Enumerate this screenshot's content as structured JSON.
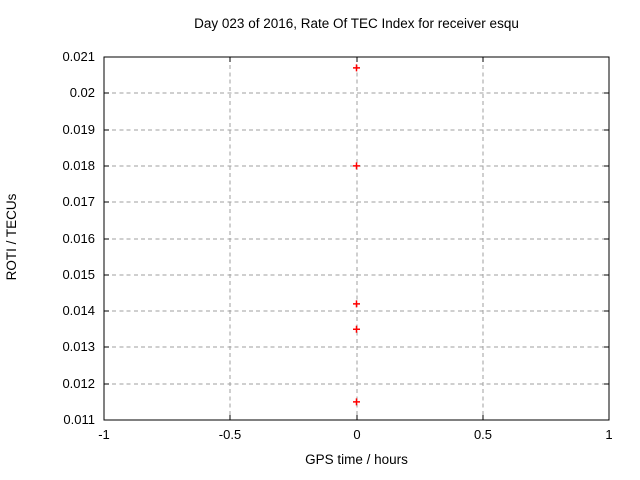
{
  "window": {
    "background": "#ffffff"
  },
  "chart_data": {
    "type": "scatter",
    "title": "Day 023 of 2016, Rate Of TEC Index for receiver esqu",
    "xlabel": "GPS time / hours",
    "ylabel": "ROTI / TECUs",
    "xlim": [
      -1,
      1
    ],
    "ylim": [
      0.011,
      0.021
    ],
    "grid": true,
    "legend_position": "none",
    "xticks": [
      {
        "value": -1,
        "label": "-1"
      },
      {
        "value": -0.5,
        "label": "-0.5"
      },
      {
        "value": 0,
        "label": "0"
      },
      {
        "value": 0.5,
        "label": "0.5"
      },
      {
        "value": 1,
        "label": "1"
      }
    ],
    "yticks": [
      {
        "value": 0.011,
        "label": "0.011"
      },
      {
        "value": 0.012,
        "label": "0.012"
      },
      {
        "value": 0.013,
        "label": "0.013"
      },
      {
        "value": 0.014,
        "label": "0.014"
      },
      {
        "value": 0.015,
        "label": "0.015"
      },
      {
        "value": 0.016,
        "label": "0.016"
      },
      {
        "value": 0.017,
        "label": "0.017"
      },
      {
        "value": 0.018,
        "label": "0.018"
      },
      {
        "value": 0.019,
        "label": "0.019"
      },
      {
        "value": 0.02,
        "label": "0.02"
      },
      {
        "value": 0.021,
        "label": "0.021"
      }
    ],
    "series": [
      {
        "name": "ROTI",
        "marker": "plus",
        "color": "#ff0000",
        "points": [
          {
            "x": 0,
            "y": 0.0207
          },
          {
            "x": 0,
            "y": 0.018
          },
          {
            "x": 0,
            "y": 0.0142
          },
          {
            "x": 0,
            "y": 0.0135
          },
          {
            "x": 0,
            "y": 0.0115
          }
        ]
      }
    ],
    "colors": {
      "grid": "#9f9f9f",
      "axis": "#000000",
      "text": "#000000",
      "background": "#ffffff"
    }
  }
}
